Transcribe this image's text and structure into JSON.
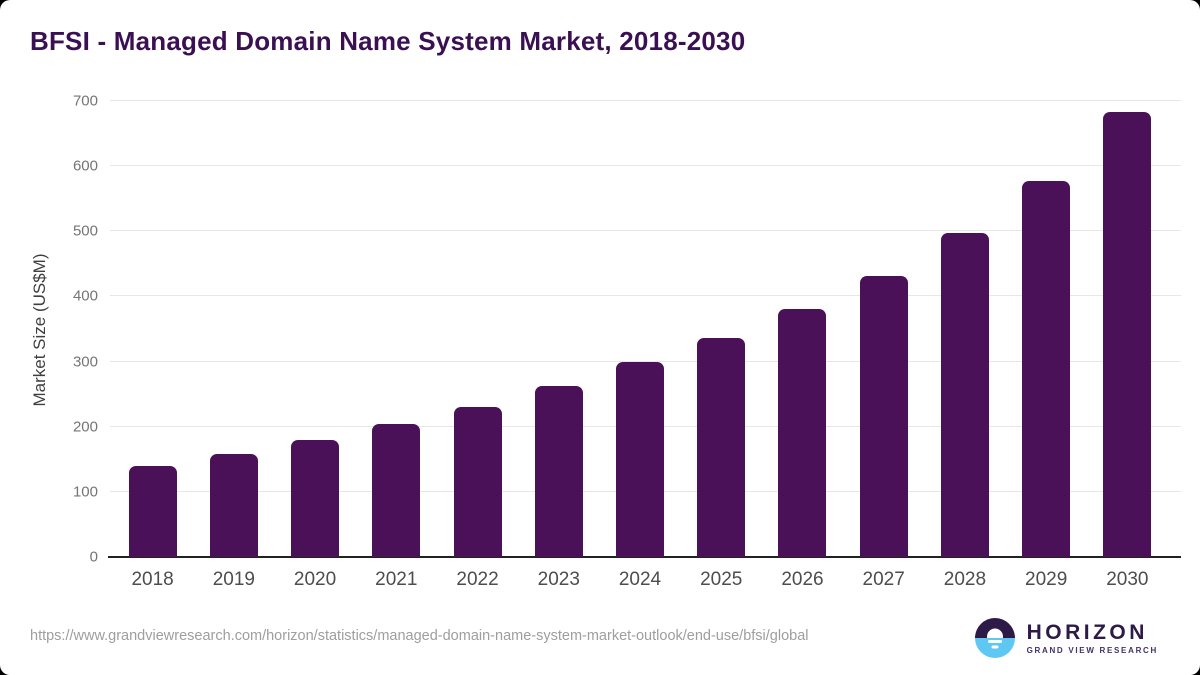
{
  "page": {
    "background_color": "#000000",
    "card_color": "#ffffff"
  },
  "header": {
    "title": "BFSI - Managed Domain Name System Market, 2018-2030"
  },
  "chart_data": {
    "type": "bar",
    "title": "BFSI - Managed Domain Name System Market, 2018-2030",
    "categories": [
      "2018",
      "2019",
      "2020",
      "2021",
      "2022",
      "2023",
      "2024",
      "2025",
      "2026",
      "2027",
      "2028",
      "2029",
      "2030"
    ],
    "values": [
      139,
      158,
      179,
      204,
      231,
      263,
      300,
      336,
      381,
      432,
      498,
      577,
      683
    ],
    "xlabel": "",
    "ylabel": "Market Size (US$M)",
    "ylim": [
      0,
      700
    ],
    "yticks": [
      0,
      100,
      200,
      300,
      400,
      500,
      600,
      700
    ],
    "grid": "horizontal",
    "legend": "none",
    "bar_color": "#4a1058",
    "gridline_color": "#e7e7e7",
    "axis_line_color": "#222222",
    "title_color": "#3a1053"
  },
  "footer": {
    "source_url": "https://www.grandviewresearch.com/horizon/statistics/managed-domain-name-system-market-outlook/end-use/bfsi/global",
    "logo": {
      "name": "HORIZON",
      "subtitle": "GRAND VIEW RESEARCH",
      "icon": "horizon-sun-icon",
      "colors": {
        "dark_purple": "#2e1a47",
        "sky_blue": "#5ec7f2",
        "name_color": "#2e1a47",
        "subtitle_color": "#43306b"
      }
    }
  }
}
